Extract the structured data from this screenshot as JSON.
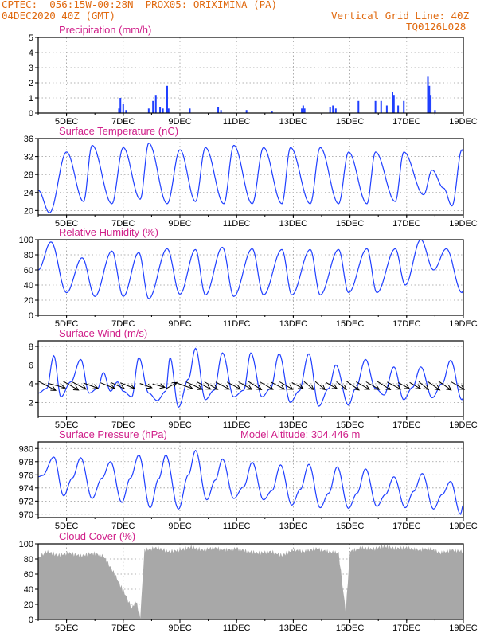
{
  "header": {
    "line1": "CPTEC:  056:15W-00:28N  PROX05: ORIXIMINA (PA)",
    "line2": "04DEC2020 40Z (GMT)",
    "grid_note": "Vertical Grid Line: 40Z",
    "code": "TQ0126L028"
  },
  "colors": {
    "header": "#e06a10",
    "title": "#d0208a",
    "series": "#1f3fff",
    "cloud": "#a8a8a8",
    "bars": "#1f3fff"
  },
  "x_axis": {
    "ticks": [
      "5DEC",
      "7DEC",
      "9DEC",
      "11DEC",
      "13DEC",
      "15DEC",
      "17DEC",
      "19DEC"
    ],
    "start_day": 4.0,
    "end_day": 19.0
  },
  "chart_data": [
    {
      "type": "bar",
      "title": "Precipitation (mm/h)",
      "ylim": [
        0,
        5
      ],
      "yticks": [
        "0",
        "1",
        "2",
        "3",
        "4",
        "5"
      ],
      "bars": [
        [
          6.85,
          0.3
        ],
        [
          6.9,
          1.0
        ],
        [
          7.0,
          0.6
        ],
        [
          7.1,
          0.2
        ],
        [
          7.9,
          0.3
        ],
        [
          8.05,
          0.8
        ],
        [
          8.15,
          1.2
        ],
        [
          8.3,
          0.4
        ],
        [
          8.4,
          0.3
        ],
        [
          8.55,
          1.8
        ],
        [
          8.6,
          0.3
        ],
        [
          9.35,
          0.3
        ],
        [
          10.35,
          0.4
        ],
        [
          10.45,
          0.2
        ],
        [
          11.35,
          0.2
        ],
        [
          12.25,
          0.1
        ],
        [
          13.3,
          0.3
        ],
        [
          13.35,
          0.5
        ],
        [
          13.4,
          0.3
        ],
        [
          14.3,
          0.4
        ],
        [
          14.4,
          0.5
        ],
        [
          14.5,
          0.3
        ],
        [
          15.3,
          0.8
        ],
        [
          15.9,
          0.8
        ],
        [
          16.1,
          0.8
        ],
        [
          16.3,
          0.5
        ],
        [
          16.5,
          1.4
        ],
        [
          16.55,
          1.2
        ],
        [
          16.7,
          0.5
        ],
        [
          16.9,
          0.8
        ],
        [
          17.75,
          2.4
        ],
        [
          17.8,
          1.8
        ],
        [
          17.85,
          1.2
        ],
        [
          18.0,
          0.2
        ]
      ]
    },
    {
      "type": "line",
      "title": "Surface Temperature (nC)",
      "ylim": [
        19,
        36
      ],
      "yticks": [
        "20",
        "24",
        "28",
        "32",
        "36"
      ],
      "extremes": [
        [
          4.0,
          24.5
        ],
        [
          4.4,
          19.5
        ],
        [
          5.0,
          33.0
        ],
        [
          5.6,
          22.0
        ],
        [
          5.9,
          34.5
        ],
        [
          6.6,
          21.5
        ],
        [
          7.0,
          34.0
        ],
        [
          7.6,
          22.5
        ],
        [
          7.9,
          35.0
        ],
        [
          8.55,
          21.5
        ],
        [
          9.0,
          33.5
        ],
        [
          9.55,
          22.0
        ],
        [
          9.9,
          34.0
        ],
        [
          10.55,
          21.5
        ],
        [
          10.9,
          34.5
        ],
        [
          11.55,
          21.5
        ],
        [
          11.95,
          34.0
        ],
        [
          12.6,
          21.5
        ],
        [
          12.9,
          34.0
        ],
        [
          13.6,
          21.5
        ],
        [
          13.95,
          34.0
        ],
        [
          14.6,
          21.5
        ],
        [
          14.95,
          33.0
        ],
        [
          15.6,
          21.5
        ],
        [
          15.9,
          33.0
        ],
        [
          16.6,
          22.0
        ],
        [
          16.9,
          33.0
        ],
        [
          17.6,
          23.5
        ],
        [
          17.9,
          29.0
        ],
        [
          18.3,
          25.0
        ],
        [
          18.6,
          21.0
        ],
        [
          18.95,
          33.5
        ],
        [
          19.0,
          33.0
        ]
      ]
    },
    {
      "type": "line",
      "title": "Relative Humidity (%)",
      "ylim": [
        0,
        100
      ],
      "yticks": [
        "0",
        "20",
        "40",
        "60",
        "80",
        "100"
      ],
      "extremes": [
        [
          4.0,
          60
        ],
        [
          4.45,
          97
        ],
        [
          5.0,
          30
        ],
        [
          5.55,
          76
        ],
        [
          6.0,
          25
        ],
        [
          6.6,
          85
        ],
        [
          7.0,
          25
        ],
        [
          7.55,
          83
        ],
        [
          7.9,
          22
        ],
        [
          8.55,
          88
        ],
        [
          9.0,
          28
        ],
        [
          9.55,
          87
        ],
        [
          9.9,
          27
        ],
        [
          10.5,
          90
        ],
        [
          10.9,
          25
        ],
        [
          11.55,
          88
        ],
        [
          11.95,
          27
        ],
        [
          12.6,
          87
        ],
        [
          12.95,
          27
        ],
        [
          13.6,
          87
        ],
        [
          13.95,
          27
        ],
        [
          14.6,
          87
        ],
        [
          14.95,
          30
        ],
        [
          15.6,
          88
        ],
        [
          15.95,
          30
        ],
        [
          16.6,
          88
        ],
        [
          16.95,
          40
        ],
        [
          17.5,
          100
        ],
        [
          17.95,
          60
        ],
        [
          18.4,
          88
        ],
        [
          18.95,
          30
        ],
        [
          19.0,
          33
        ]
      ]
    },
    {
      "type": "line",
      "title": "Surface Wind (m/s)",
      "ylim": [
        0.5,
        8.6
      ],
      "yticks": [
        "2",
        "4",
        "6",
        "8"
      ],
      "extremes": [
        [
          4.0,
          3.0
        ],
        [
          4.3,
          3.5
        ],
        [
          4.55,
          7.0
        ],
        [
          4.8,
          2.6
        ],
        [
          5.15,
          4.2
        ],
        [
          5.5,
          6.6
        ],
        [
          5.8,
          3.0
        ],
        [
          6.1,
          3.5
        ],
        [
          6.3,
          5.2
        ],
        [
          6.55,
          3.2
        ],
        [
          6.8,
          4.2
        ],
        [
          7.0,
          3.2
        ],
        [
          7.3,
          2.6
        ],
        [
          7.55,
          6.8
        ],
        [
          7.9,
          3.0
        ],
        [
          8.2,
          2.2
        ],
        [
          8.5,
          3.2
        ],
        [
          8.65,
          6.8
        ],
        [
          8.95,
          1.5
        ],
        [
          9.3,
          4.5
        ],
        [
          9.55,
          7.8
        ],
        [
          9.9,
          2.3
        ],
        [
          10.2,
          3.3
        ],
        [
          10.5,
          7.3
        ],
        [
          10.9,
          2.6
        ],
        [
          11.25,
          3.3
        ],
        [
          11.5,
          7.3
        ],
        [
          11.9,
          2.6
        ],
        [
          12.2,
          3.5
        ],
        [
          12.5,
          7.2
        ],
        [
          12.9,
          2.0
        ],
        [
          13.2,
          3.2
        ],
        [
          13.55,
          7.2
        ],
        [
          13.9,
          1.6
        ],
        [
          14.25,
          3.5
        ],
        [
          14.5,
          6.0
        ],
        [
          14.95,
          1.7
        ],
        [
          15.2,
          3.5
        ],
        [
          15.55,
          6.6
        ],
        [
          15.9,
          3.5
        ],
        [
          16.2,
          2.8
        ],
        [
          16.55,
          5.8
        ],
        [
          16.9,
          2.3
        ],
        [
          17.2,
          3.6
        ],
        [
          17.5,
          5.8
        ],
        [
          17.9,
          2.5
        ],
        [
          18.25,
          4.0
        ],
        [
          18.55,
          6.5
        ],
        [
          18.95,
          2.3
        ],
        [
          19.0,
          2.5
        ]
      ],
      "vectors": [
        [
          4.3,
          -28,
          8
        ],
        [
          4.65,
          -15,
          7
        ],
        [
          5.15,
          -30,
          7
        ],
        [
          5.45,
          -28,
          6
        ],
        [
          5.85,
          -20,
          6
        ],
        [
          6.45,
          -22,
          6
        ],
        [
          6.8,
          -25,
          6
        ],
        [
          7.15,
          -22,
          6
        ],
        [
          7.8,
          -20,
          5
        ],
        [
          8.25,
          -15,
          5
        ],
        [
          8.7,
          30,
          5
        ],
        [
          9.15,
          -20,
          7
        ],
        [
          9.5,
          -25,
          7
        ],
        [
          9.85,
          -28,
          6
        ],
        [
          10.1,
          -30,
          6
        ],
        [
          10.5,
          -28,
          6
        ],
        [
          10.9,
          -28,
          6
        ],
        [
          11.3,
          -30,
          6
        ],
        [
          11.65,
          -32,
          6
        ],
        [
          12.05,
          -30,
          6
        ],
        [
          12.45,
          -28,
          6
        ],
        [
          12.75,
          -30,
          6
        ],
        [
          13.15,
          -28,
          5
        ],
        [
          13.55,
          -40,
          5
        ],
        [
          13.95,
          -40,
          5
        ],
        [
          14.35,
          -30,
          5
        ],
        [
          14.7,
          -38,
          5
        ],
        [
          15.1,
          -35,
          6
        ],
        [
          15.45,
          -30,
          6
        ],
        [
          15.8,
          -30,
          6
        ],
        [
          16.2,
          -32,
          6
        ],
        [
          16.55,
          -28,
          6
        ],
        [
          16.9,
          -28,
          5
        ],
        [
          17.3,
          -30,
          5
        ],
        [
          17.6,
          -40,
          5
        ],
        [
          17.95,
          -35,
          6
        ],
        [
          18.35,
          -35,
          6
        ],
        [
          18.8,
          -30,
          6
        ]
      ]
    },
    {
      "type": "line",
      "title": "Surface Pressure (hPa)",
      "note": "Model Altitude: 304.446 m",
      "ylim": [
        969.5,
        981
      ],
      "yticks": [
        "970",
        "972",
        "974",
        "976",
        "978",
        "980"
      ],
      "extremes": [
        [
          4.0,
          975.7
        ],
        [
          4.15,
          975.9
        ],
        [
          4.55,
          978.7
        ],
        [
          4.9,
          972.8
        ],
        [
          5.2,
          975.5
        ],
        [
          5.5,
          978.6
        ],
        [
          5.9,
          972.4
        ],
        [
          6.25,
          975.5
        ],
        [
          6.55,
          978.0
        ],
        [
          6.95,
          971.8
        ],
        [
          7.25,
          975.5
        ],
        [
          7.55,
          979.0
        ],
        [
          7.95,
          971.0
        ],
        [
          8.25,
          975.4
        ],
        [
          8.5,
          979.0
        ],
        [
          8.95,
          970.8
        ],
        [
          9.3,
          976.0
        ],
        [
          9.55,
          979.7
        ],
        [
          9.95,
          972.2
        ],
        [
          10.25,
          975.2
        ],
        [
          10.5,
          978.4
        ],
        [
          10.9,
          972.4
        ],
        [
          11.25,
          974.2
        ],
        [
          11.55,
          977.9
        ],
        [
          11.95,
          972.2
        ],
        [
          12.25,
          973.6
        ],
        [
          12.55,
          977.5
        ],
        [
          12.95,
          971.4
        ],
        [
          13.25,
          973.8
        ],
        [
          13.55,
          977.6
        ],
        [
          13.95,
          971.0
        ],
        [
          14.25,
          973.2
        ],
        [
          14.55,
          977.2
        ],
        [
          14.95,
          970.9
        ],
        [
          15.25,
          973.2
        ],
        [
          15.55,
          976.9
        ],
        [
          15.95,
          971.2
        ],
        [
          16.25,
          973.0
        ],
        [
          16.55,
          975.7
        ],
        [
          16.95,
          971.0
        ],
        [
          17.25,
          973.5
        ],
        [
          17.55,
          976.2
        ],
        [
          17.95,
          970.8
        ],
        [
          18.25,
          973.0
        ],
        [
          18.55,
          975.0
        ],
        [
          18.9,
          970.0
        ],
        [
          19.0,
          971.5
        ]
      ]
    },
    {
      "type": "area",
      "title": "Cloud Cover (%)",
      "ylim": [
        0,
        100
      ],
      "yticks": [
        "0",
        "20",
        "40",
        "60",
        "80",
        "100"
      ],
      "profile": [
        [
          4.0,
          82
        ],
        [
          4.3,
          90
        ],
        [
          4.7,
          85
        ],
        [
          5.1,
          88
        ],
        [
          5.5,
          84
        ],
        [
          5.9,
          88
        ],
        [
          6.3,
          84
        ],
        [
          6.7,
          60
        ],
        [
          6.9,
          45
        ],
        [
          7.05,
          35
        ],
        [
          7.3,
          15
        ],
        [
          7.45,
          25
        ],
        [
          7.6,
          3
        ],
        [
          7.75,
          92
        ],
        [
          8.2,
          95
        ],
        [
          8.6,
          90
        ],
        [
          9.0,
          92
        ],
        [
          9.4,
          96
        ],
        [
          9.8,
          92
        ],
        [
          10.2,
          95
        ],
        [
          10.6,
          92
        ],
        [
          11.0,
          94
        ],
        [
          11.4,
          90
        ],
        [
          11.8,
          88
        ],
        [
          12.2,
          90
        ],
        [
          12.6,
          85
        ],
        [
          13.0,
          92
        ],
        [
          13.4,
          90
        ],
        [
          13.8,
          94
        ],
        [
          14.2,
          90
        ],
        [
          14.6,
          88
        ],
        [
          14.85,
          10
        ],
        [
          15.0,
          90
        ],
        [
          15.4,
          95
        ],
        [
          15.8,
          93
        ],
        [
          16.2,
          97
        ],
        [
          16.6,
          94
        ],
        [
          17.0,
          95
        ],
        [
          17.4,
          92
        ],
        [
          17.8,
          94
        ],
        [
          18.2,
          88
        ],
        [
          18.6,
          92
        ],
        [
          19.0,
          90
        ]
      ]
    }
  ]
}
